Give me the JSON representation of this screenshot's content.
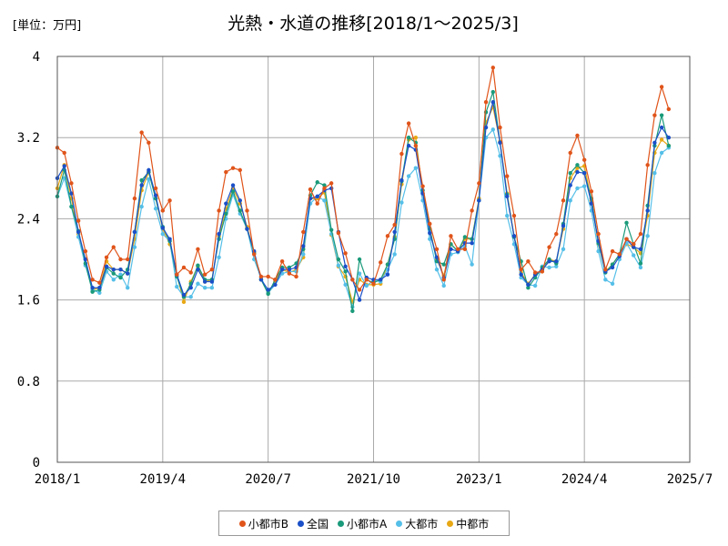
{
  "chart_data": {
    "type": "line",
    "title": "光熱・水道の推移[2018/1～2025/3]",
    "unit_label": "[単位：万円]",
    "ylim": [
      0,
      4
    ],
    "y_ticks": [
      "0",
      "0.8",
      "1.6",
      "2.4",
      "3.2",
      "4"
    ],
    "x_ticks": [
      "2018/1",
      "2019/4",
      "2020/7",
      "2021/10",
      "2023/1",
      "2024/4",
      "2025/7"
    ],
    "grid": true,
    "legend_position": "bottom",
    "series": [
      {
        "name": "小都市B",
        "color": "#e0541a",
        "values": [
          3.1,
          3.05,
          2.75,
          2.38,
          2.08,
          1.8,
          1.77,
          2.02,
          2.12,
          2.0,
          2.0,
          2.6,
          3.25,
          3.15,
          2.7,
          2.48,
          2.58,
          1.85,
          1.92,
          1.87,
          2.1,
          1.85,
          1.9,
          2.48,
          2.86,
          2.9,
          2.88,
          2.48,
          2.05,
          1.83,
          1.83,
          1.8,
          1.98,
          1.86,
          1.83,
          2.27,
          2.69,
          2.55,
          2.7,
          2.75,
          2.26,
          2.06,
          1.8,
          1.7,
          1.8,
          1.76,
          1.97,
          2.23,
          2.34,
          3.04,
          3.34,
          3.12,
          2.72,
          2.35,
          2.1,
          1.8,
          2.23,
          2.1,
          2.1,
          2.48,
          2.75,
          3.55,
          3.89,
          3.3,
          2.82,
          2.43,
          1.9,
          1.98,
          1.87,
          1.88,
          2.12,
          2.25,
          2.58,
          3.05,
          3.22,
          2.98,
          2.67,
          2.25,
          1.9,
          2.08,
          2.05,
          2.2,
          2.15,
          2.25,
          2.93,
          3.42,
          3.7,
          3.48
        ]
      },
      {
        "name": "全国",
        "color": "#1a4fc8",
        "values": [
          2.8,
          2.92,
          2.65,
          2.27,
          2.0,
          1.72,
          1.72,
          1.93,
          1.9,
          1.9,
          1.86,
          2.27,
          2.73,
          2.88,
          2.63,
          2.31,
          2.2,
          1.85,
          1.65,
          1.72,
          1.9,
          1.78,
          1.78,
          2.25,
          2.55,
          2.73,
          2.58,
          2.3,
          2.08,
          1.8,
          1.7,
          1.75,
          1.9,
          1.9,
          1.92,
          2.13,
          2.6,
          2.62,
          2.68,
          2.7,
          2.27,
          1.93,
          1.8,
          1.6,
          1.82,
          1.8,
          1.8,
          1.85,
          2.27,
          2.78,
          3.12,
          3.08,
          2.65,
          2.26,
          2.02,
          1.82,
          2.1,
          2.08,
          2.16,
          2.16,
          2.58,
          3.3,
          3.55,
          3.15,
          2.62,
          2.23,
          1.85,
          1.75,
          1.85,
          1.9,
          1.98,
          1.98,
          2.33,
          2.73,
          2.86,
          2.85,
          2.55,
          2.18,
          1.88,
          1.92,
          2.03,
          2.2,
          2.12,
          2.1,
          2.48,
          3.15,
          3.3,
          3.2
        ]
      },
      {
        "name": "小都市A",
        "color": "#1a9a7a",
        "values": [
          2.62,
          2.88,
          2.52,
          2.28,
          1.96,
          1.68,
          1.7,
          1.92,
          1.86,
          1.82,
          1.9,
          2.27,
          2.78,
          2.86,
          2.6,
          2.32,
          2.18,
          1.83,
          1.63,
          1.76,
          1.94,
          1.8,
          1.8,
          2.2,
          2.45,
          2.67,
          2.48,
          2.3,
          2.06,
          1.8,
          1.66,
          1.8,
          1.92,
          1.92,
          1.96,
          2.1,
          2.63,
          2.76,
          2.73,
          2.29,
          2.0,
          1.88,
          1.49,
          2.0,
          1.8,
          1.77,
          1.8,
          1.95,
          2.2,
          2.77,
          3.2,
          3.15,
          2.68,
          2.3,
          1.98,
          1.95,
          2.15,
          2.08,
          2.22,
          2.2,
          2.58,
          3.45,
          3.65,
          3.15,
          2.64,
          2.22,
          1.98,
          1.72,
          1.82,
          1.92,
          2.0,
          1.96,
          2.35,
          2.85,
          2.93,
          2.85,
          2.6,
          2.16,
          1.87,
          1.95,
          2.05,
          2.36,
          2.15,
          1.96,
          2.53,
          3.12,
          3.42,
          3.12
        ]
      },
      {
        "name": "大都市",
        "color": "#55bfe8",
        "values": [
          2.62,
          2.8,
          2.52,
          2.22,
          1.94,
          1.7,
          1.67,
          1.88,
          1.8,
          1.85,
          1.72,
          2.12,
          2.52,
          2.79,
          2.5,
          2.25,
          2.18,
          1.73,
          1.63,
          1.63,
          1.76,
          1.72,
          1.72,
          2.02,
          2.4,
          2.64,
          2.45,
          2.3,
          2.0,
          1.82,
          1.67,
          1.75,
          1.86,
          1.88,
          1.88,
          2.05,
          2.55,
          2.62,
          2.58,
          2.25,
          1.94,
          1.75,
          1.53,
          1.86,
          1.74,
          1.79,
          1.78,
          1.9,
          2.05,
          2.56,
          2.82,
          2.9,
          2.58,
          2.2,
          1.9,
          1.74,
          2.05,
          2.07,
          2.13,
          1.95,
          2.58,
          3.2,
          3.28,
          3.02,
          2.43,
          2.15,
          1.82,
          1.75,
          1.74,
          1.93,
          1.92,
          1.93,
          2.1,
          2.58,
          2.7,
          2.72,
          2.48,
          2.08,
          1.8,
          1.76,
          2.0,
          2.16,
          2.04,
          1.92,
          2.23,
          2.85,
          3.05,
          3.1
        ]
      },
      {
        "name": "中都市",
        "color": "#e8a814",
        "values": [
          2.7,
          2.93,
          2.6,
          2.25,
          2.0,
          1.7,
          1.72,
          1.98,
          1.9,
          1.9,
          1.86,
          2.2,
          2.68,
          2.86,
          2.6,
          2.3,
          2.15,
          1.85,
          1.58,
          1.78,
          1.93,
          1.78,
          1.8,
          2.23,
          2.5,
          2.7,
          2.55,
          2.32,
          2.07,
          1.8,
          1.67,
          1.78,
          1.9,
          1.87,
          1.9,
          2.02,
          2.6,
          2.6,
          2.66,
          2.24,
          1.93,
          1.83,
          1.58,
          1.8,
          1.75,
          1.75,
          1.76,
          1.95,
          2.22,
          2.74,
          3.18,
          3.2,
          2.65,
          2.3,
          2.0,
          1.84,
          2.15,
          2.08,
          2.2,
          2.2,
          2.6,
          3.35,
          3.5,
          3.16,
          2.65,
          2.23,
          1.87,
          1.76,
          1.85,
          1.88,
          2.0,
          1.98,
          2.3,
          2.8,
          2.9,
          2.92,
          2.58,
          2.15,
          1.88,
          1.95,
          2.05,
          2.15,
          2.12,
          2.06,
          2.43,
          3.05,
          3.18,
          3.12
        ]
      }
    ]
  }
}
